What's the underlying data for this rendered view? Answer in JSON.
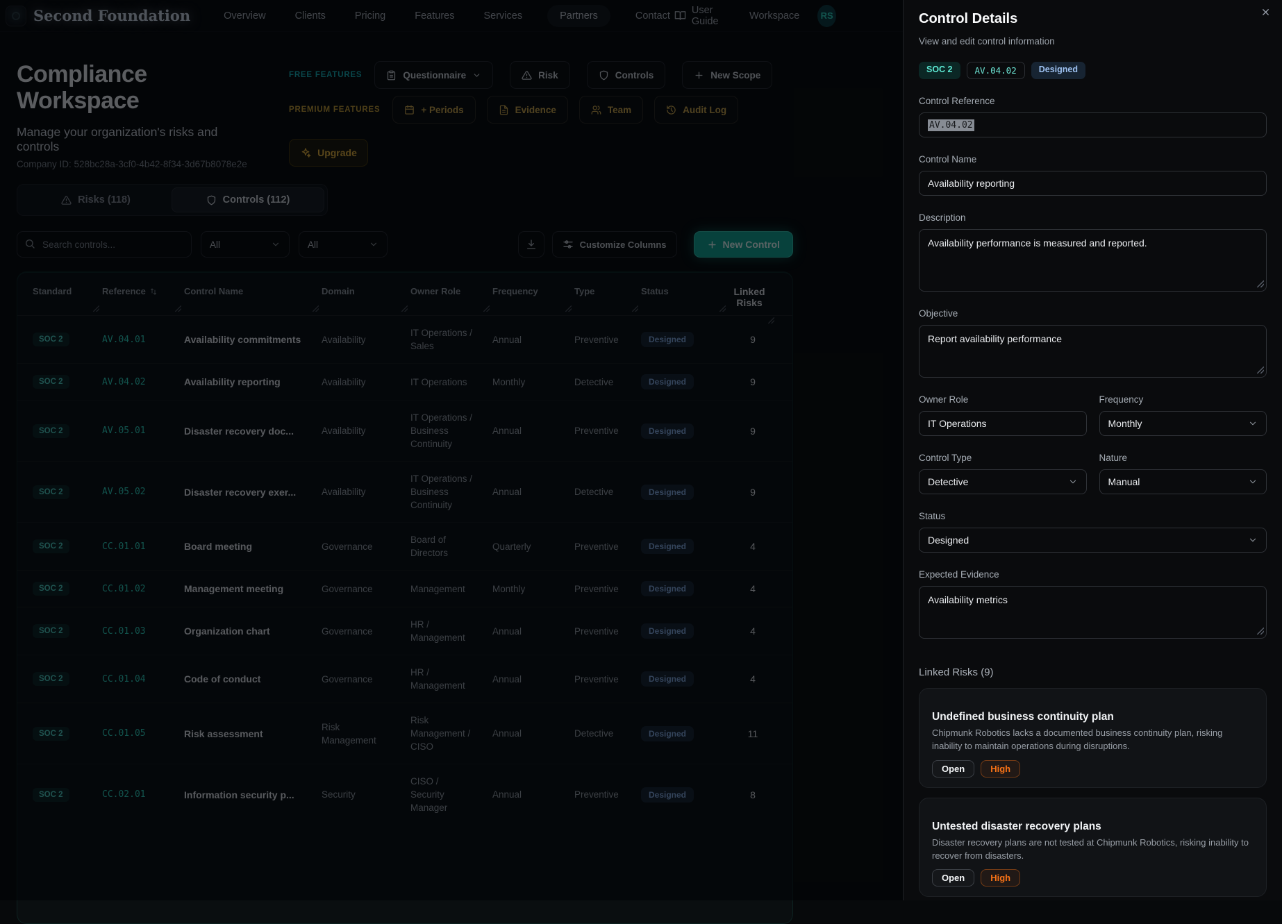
{
  "nav": {
    "brand": "Second Foundation",
    "items": [
      {
        "label": "Overview",
        "active": false
      },
      {
        "label": "Clients",
        "active": false
      },
      {
        "label": "Pricing",
        "active": false
      },
      {
        "label": "Features",
        "active": false
      },
      {
        "label": "Services",
        "active": false
      },
      {
        "label": "Partners",
        "active": true
      },
      {
        "label": "Contact",
        "active": false
      }
    ],
    "user_guide_label": "User Guide",
    "workspace_label": "Workspace",
    "avatar_initials": "RS"
  },
  "header": {
    "title": "Compliance Workspace",
    "subtitle": "Manage your organization's risks and controls",
    "company_id": "Company ID: 528bc28a-3cf0-4b42-8f34-3d67b8078e2e"
  },
  "features": {
    "free": {
      "label": "FREE FEATURES",
      "buttons": [
        {
          "label": "Questionnaire",
          "icon": "clipboard-icon",
          "dropdown": true
        },
        {
          "label": "Risk",
          "icon": "alert-triangle-icon",
          "dropdown": false
        },
        {
          "label": "Controls",
          "icon": "shield-icon",
          "dropdown": false
        },
        {
          "label": "New Scope",
          "icon": "plus-icon",
          "dropdown": false
        }
      ]
    },
    "premium": {
      "label": "PREMIUM FEATURES",
      "buttons": [
        {
          "label": "+ Periods",
          "icon": "calendar-icon",
          "dropdown": false
        },
        {
          "label": "Evidence",
          "icon": "file-icon",
          "dropdown": false
        },
        {
          "label": "Team",
          "icon": "users-icon",
          "dropdown": false
        },
        {
          "label": "Audit Log",
          "icon": "history-icon",
          "dropdown": false
        }
      ]
    },
    "upgrade_label": "Upgrade"
  },
  "tabs": [
    {
      "label": "Risks (118)",
      "icon": "alert-triangle-icon",
      "active": false
    },
    {
      "label": "Controls (112)",
      "icon": "shield-icon",
      "active": true
    }
  ],
  "toolbar": {
    "search_placeholder": "Search controls...",
    "filters": [
      "All",
      "All"
    ],
    "customize_label": "Customize Columns",
    "new_control_label": "New Control"
  },
  "table": {
    "columns": [
      "Standard",
      "Reference",
      "Control Name",
      "Domain",
      "Owner Role",
      "Frequency",
      "Type",
      "Status",
      "Linked Risks"
    ],
    "sorted_column": "Reference",
    "rows": [
      {
        "standard": "SOC 2",
        "reference": "AV.04.01",
        "name": "Availability commitments",
        "domain": "Availability",
        "owner": "IT Operations / Sales",
        "frequency": "Annual",
        "type": "Preventive",
        "status": "Designed",
        "linked": "9"
      },
      {
        "standard": "SOC 2",
        "reference": "AV.04.02",
        "name": "Availability reporting",
        "domain": "Availability",
        "owner": "IT Operations",
        "frequency": "Monthly",
        "type": "Detective",
        "status": "Designed",
        "linked": "9"
      },
      {
        "standard": "SOC 2",
        "reference": "AV.05.01",
        "name": "Disaster recovery doc...",
        "domain": "Availability",
        "owner": "IT Operations / Business Continuity",
        "frequency": "Annual",
        "type": "Preventive",
        "status": "Designed",
        "linked": "9"
      },
      {
        "standard": "SOC 2",
        "reference": "AV.05.02",
        "name": "Disaster recovery exer...",
        "domain": "Availability",
        "owner": "IT Operations / Business Continuity",
        "frequency": "Annual",
        "type": "Detective",
        "status": "Designed",
        "linked": "9"
      },
      {
        "standard": "SOC 2",
        "reference": "CC.01.01",
        "name": "Board meeting",
        "domain": "Governance",
        "owner": "Board of Directors",
        "frequency": "Quarterly",
        "type": "Preventive",
        "status": "Designed",
        "linked": "4"
      },
      {
        "standard": "SOC 2",
        "reference": "CC.01.02",
        "name": "Management meeting",
        "domain": "Governance",
        "owner": "Management",
        "frequency": "Monthly",
        "type": "Preventive",
        "status": "Designed",
        "linked": "4"
      },
      {
        "standard": "SOC 2",
        "reference": "CC.01.03",
        "name": "Organization chart",
        "domain": "Governance",
        "owner": "HR / Management",
        "frequency": "Annual",
        "type": "Preventive",
        "status": "Designed",
        "linked": "4"
      },
      {
        "standard": "SOC 2",
        "reference": "CC.01.04",
        "name": "Code of conduct",
        "domain": "Governance",
        "owner": "HR / Management",
        "frequency": "Annual",
        "type": "Preventive",
        "status": "Designed",
        "linked": "4"
      },
      {
        "standard": "SOC 2",
        "reference": "CC.01.05",
        "name": "Risk assessment",
        "domain": "Risk Management",
        "owner": "Risk Management / CISO",
        "frequency": "Annual",
        "type": "Detective",
        "status": "Designed",
        "linked": "11"
      },
      {
        "standard": "SOC 2",
        "reference": "CC.02.01",
        "name": "Information security p...",
        "domain": "Security",
        "owner": "CISO / Security Manager",
        "frequency": "Annual",
        "type": "Preventive",
        "status": "Designed",
        "linked": "8"
      }
    ]
  },
  "panel": {
    "title": "Control Details",
    "subtitle": "View and edit control information",
    "badges": {
      "standard": "SOC 2",
      "reference": "AV.04.02",
      "status": "Designed"
    },
    "fields": {
      "control_reference": {
        "label": "Control Reference",
        "value": "AV.04.02"
      },
      "control_name": {
        "label": "Control Name",
        "value": "Availability reporting"
      },
      "description": {
        "label": "Description",
        "value": "Availability performance is measured and reported."
      },
      "objective": {
        "label": "Objective",
        "value": "Report availability performance"
      },
      "owner_role": {
        "label": "Owner Role",
        "value": "IT Operations"
      },
      "frequency": {
        "label": "Frequency",
        "value": "Monthly"
      },
      "control_type": {
        "label": "Control Type",
        "value": "Detective"
      },
      "nature": {
        "label": "Nature",
        "value": "Manual"
      },
      "status": {
        "label": "Status",
        "value": "Designed"
      },
      "expected_evidence": {
        "label": "Expected Evidence",
        "value": "Availability metrics"
      }
    },
    "linked_risks": {
      "label": "Linked Risks (9)",
      "cards": [
        {
          "title": "Undefined business continuity plan",
          "description": "Chipmunk Robotics lacks a documented business continuity plan, risking inability to maintain operations during disruptions.",
          "status": "Open",
          "severity": "High"
        },
        {
          "title": "Untested disaster recovery plans",
          "description": "Disaster recovery plans are not tested at Chipmunk Robotics, risking inability to recover from disasters.",
          "status": "Open",
          "severity": "High"
        }
      ]
    }
  },
  "colors": {
    "accent_teal": "#2dd4bf",
    "accent_gold": "#eab308",
    "status_blue": "#60a5fa",
    "severity_orange": "#f97316"
  }
}
